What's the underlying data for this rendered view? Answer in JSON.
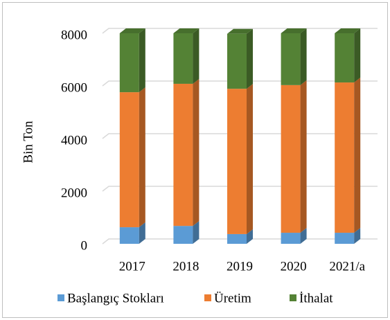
{
  "chart_data": {
    "type": "bar3d_stacked",
    "ylabel": "Bin Ton",
    "categories": [
      "2017",
      "2018",
      "2019",
      "2020",
      "2021/a"
    ],
    "series": [
      {
        "name": "Başlangıç Stokları",
        "color": "#5b9bd5",
        "values": [
          630,
          680,
          370,
          420,
          420
        ]
      },
      {
        "name": "Üretim",
        "color": "#ed7d31",
        "values": [
          5130,
          5400,
          5520,
          5610,
          5710
        ]
      },
      {
        "name": "İthalat",
        "color": "#548235",
        "values": [
          2240,
          1920,
          2090,
          1970,
          1870
        ]
      }
    ],
    "ylim": [
      0,
      8000
    ],
    "yticks": [
      0,
      2000,
      4000,
      6000,
      8000
    ],
    "grid": true,
    "legend": "bottom"
  }
}
